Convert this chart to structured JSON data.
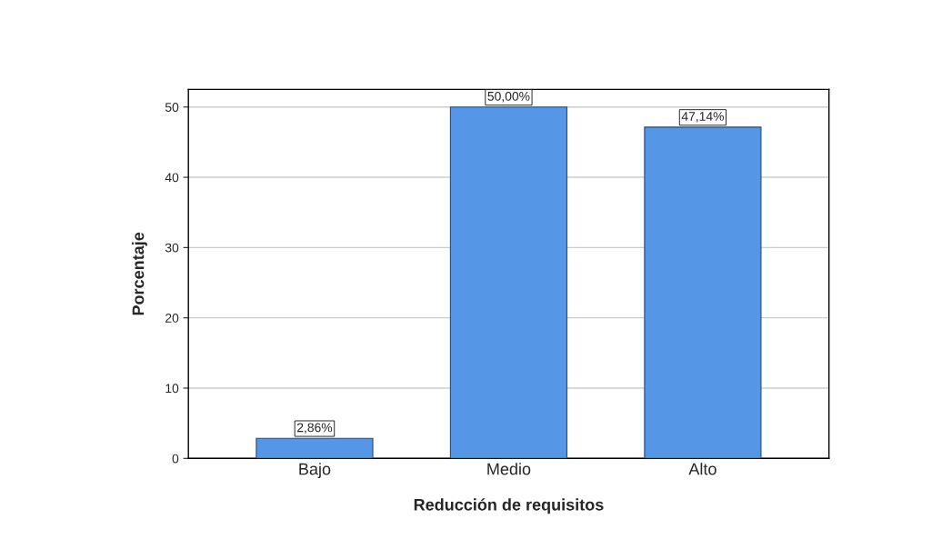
{
  "chart_data": {
    "type": "bar",
    "xlabel": "Reducción de requisitos",
    "ylabel": "Porcentaje",
    "categories": [
      "Bajo",
      "Medio",
      "Alto"
    ],
    "values": [
      2.86,
      50.0,
      47.14
    ],
    "value_labels": [
      "2,86%",
      "50,00%",
      "47,14%"
    ],
    "color": "#5596e6",
    "ylim": [
      0,
      52.5
    ],
    "yticks": [
      0,
      10,
      20,
      30,
      40,
      50
    ],
    "grid": "y"
  }
}
